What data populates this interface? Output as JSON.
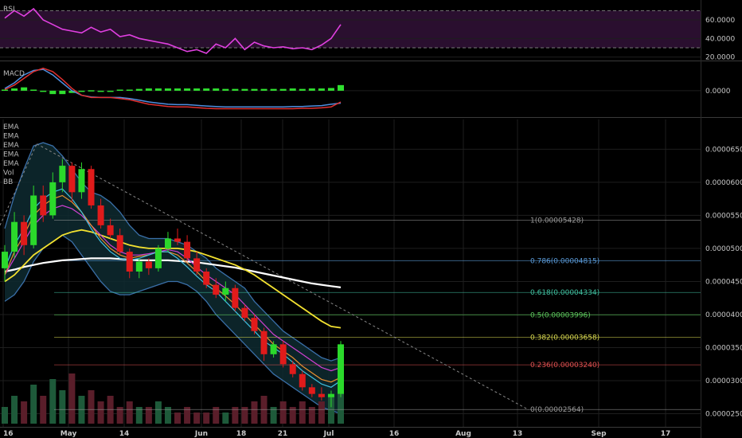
{
  "colors": {
    "background": "#000000",
    "grid": "#1e1e1e",
    "pane_divider": "#3a3a3a",
    "candle_up": "#2bd92b",
    "candle_down": "#e01b1b",
    "rsi_line": "#e040e0",
    "rsi_band": "#2a0f2f",
    "macd_line": "#4f8fe0",
    "signal_line": "#e03030",
    "hist_color": "#30e030",
    "bb_band": "#3a6fa8",
    "bb_fill": "#0e2a30",
    "volume_up": "#1e5a3a",
    "volume_down": "#5a1e2a",
    "trendline": "#888888"
  },
  "rsi": {
    "label": "RSI",
    "ticks": [
      "60.0000",
      "40.0000",
      "20.0000"
    ],
    "tick_values": [
      60,
      40,
      20
    ],
    "band": [
      30,
      70
    ]
  },
  "macd": {
    "label": "MACD",
    "ticks": [
      "0.0000"
    ]
  },
  "main": {
    "legend": [
      "EMA",
      "EMA",
      "EMA",
      "EMA",
      "EMA",
      "Vol",
      "BB"
    ],
    "price_ticks": [
      "0.00006500",
      "0.00006000",
      "0.00005500",
      "0.00005000",
      "0.00004500",
      "0.00004000",
      "0.00003500",
      "0.00003000",
      "0.00002500"
    ],
    "price_tick_values": [
      6.5e-05,
      6e-05,
      5.5e-05,
      5e-05,
      4.5e-05,
      4e-05,
      3.5e-05,
      3e-05,
      2.5e-05
    ],
    "price_range": [
      2.35e-05,
      6.95e-05
    ]
  },
  "x_axis": {
    "ticks": [
      "16",
      "May",
      "14",
      "Jun",
      "18",
      "21",
      "Jul",
      "16",
      "Aug",
      "13",
      "Sep",
      "17"
    ]
  },
  "fibonacci": [
    {
      "label": "1(0.00005428)",
      "level": 5.428e-05,
      "color": "#9a9a9a"
    },
    {
      "label": "0.786(0.00004815)",
      "level": 4.815e-05,
      "color": "#5a9ad8"
    },
    {
      "label": "0.618(0.00004334)",
      "level": 4.334e-05,
      "color": "#40c0a0"
    },
    {
      "label": "0.5(0.00003996)",
      "level": 3.996e-05,
      "color": "#5cc85c"
    },
    {
      "label": "0.382(0.00003658)",
      "level": 3.658e-05,
      "color": "#d8d850"
    },
    {
      "label": "0.236(0.00003240)",
      "level": 3.24e-05,
      "color": "#e05050"
    },
    {
      "label": "0(0.00002564)",
      "level": 2.564e-05,
      "color": "#9a9a9a"
    }
  ],
  "chart_data": {
    "type": "candlestick",
    "candles": [
      {
        "o": 4.7e-05,
        "h": 5.05e-05,
        "l": 4.5e-05,
        "c": 4.95e-05
      },
      {
        "o": 4.95e-05,
        "h": 5.55e-05,
        "l": 4.85e-05,
        "c": 5.4e-05
      },
      {
        "o": 5.4e-05,
        "h": 5.5e-05,
        "l": 4.9e-05,
        "c": 5.05e-05
      },
      {
        "o": 5.05e-05,
        "h": 5.95e-05,
        "l": 5e-05,
        "c": 5.8e-05
      },
      {
        "o": 5.8e-05,
        "h": 5.95e-05,
        "l": 5.4e-05,
        "c": 5.5e-05
      },
      {
        "o": 5.5e-05,
        "h": 6.15e-05,
        "l": 5.45e-05,
        "c": 6e-05
      },
      {
        "o": 6e-05,
        "h": 6.35e-05,
        "l": 5.85e-05,
        "c": 6.25e-05
      },
      {
        "o": 6.25e-05,
        "h": 6.3e-05,
        "l": 5.7e-05,
        "c": 5.85e-05
      },
      {
        "o": 5.85e-05,
        "h": 6.3e-05,
        "l": 5.75e-05,
        "c": 6.2e-05
      },
      {
        "o": 6.2e-05,
        "h": 6.25e-05,
        "l": 5.6e-05,
        "c": 5.65e-05
      },
      {
        "o": 5.65e-05,
        "h": 5.75e-05,
        "l": 5.3e-05,
        "c": 5.35e-05
      },
      {
        "o": 5.35e-05,
        "h": 5.45e-05,
        "l": 5.15e-05,
        "c": 5.2e-05
      },
      {
        "o": 5.2e-05,
        "h": 5.3e-05,
        "l": 4.9e-05,
        "c": 4.95e-05
      },
      {
        "o": 4.95e-05,
        "h": 5e-05,
        "l": 4.55e-05,
        "c": 4.65e-05
      },
      {
        "o": 4.65e-05,
        "h": 4.85e-05,
        "l": 4.55e-05,
        "c": 4.8e-05
      },
      {
        "o": 4.8e-05,
        "h": 4.85e-05,
        "l": 4.6e-05,
        "c": 4.7e-05
      },
      {
        "o": 4.7e-05,
        "h": 5.05e-05,
        "l": 4.65e-05,
        "c": 5e-05
      },
      {
        "o": 5e-05,
        "h": 5.25e-05,
        "l": 4.95e-05,
        "c": 5.15e-05
      },
      {
        "o": 5.15e-05,
        "h": 5.3e-05,
        "l": 5.05e-05,
        "c": 5.1e-05
      },
      {
        "o": 5.1e-05,
        "h": 5.2e-05,
        "l": 4.8e-05,
        "c": 4.85e-05
      },
      {
        "o": 4.85e-05,
        "h": 4.95e-05,
        "l": 4.6e-05,
        "c": 4.65e-05
      },
      {
        "o": 4.65e-05,
        "h": 4.7e-05,
        "l": 4.4e-05,
        "c": 4.45e-05
      },
      {
        "o": 4.45e-05,
        "h": 4.55e-05,
        "l": 4.25e-05,
        "c": 4.3e-05
      },
      {
        "o": 4.3e-05,
        "h": 4.5e-05,
        "l": 4.2e-05,
        "c": 4.4e-05
      },
      {
        "o": 4.4e-05,
        "h": 4.45e-05,
        "l": 4.05e-05,
        "c": 4.1e-05
      },
      {
        "o": 4.1e-05,
        "h": 4.15e-05,
        "l": 3.9e-05,
        "c": 3.95e-05
      },
      {
        "o": 3.95e-05,
        "h": 4e-05,
        "l": 3.7e-05,
        "c": 3.75e-05
      },
      {
        "o": 3.75e-05,
        "h": 3.8e-05,
        "l": 3.3e-05,
        "c": 3.4e-05
      },
      {
        "o": 3.4e-05,
        "h": 3.6e-05,
        "l": 3.35e-05,
        "c": 3.55e-05
      },
      {
        "o": 3.55e-05,
        "h": 3.6e-05,
        "l": 3.2e-05,
        "c": 3.25e-05
      },
      {
        "o": 3.25e-05,
        "h": 3.3e-05,
        "l": 3.05e-05,
        "c": 3.1e-05
      },
      {
        "o": 3.1e-05,
        "h": 3.15e-05,
        "l": 2.85e-05,
        "c": 2.9e-05
      },
      {
        "o": 2.9e-05,
        "h": 2.95e-05,
        "l": 2.75e-05,
        "c": 2.8e-05
      },
      {
        "o": 2.8e-05,
        "h": 2.9e-05,
        "l": 2.7e-05,
        "c": 2.75e-05
      },
      {
        "o": 2.75e-05,
        "h": 2.85e-05,
        "l": 2.6e-05,
        "c": 2.8e-05
      },
      {
        "o": 2.8e-05,
        "h": 3.6e-05,
        "l": 2.75e-05,
        "c": 3.55e-05
      }
    ],
    "rsi_values": [
      62,
      70,
      64,
      72,
      60,
      55,
      50,
      48,
      46,
      52,
      47,
      50,
      42,
      44,
      40,
      38,
      36,
      34,
      30,
      26,
      28,
      24,
      34,
      30,
      40,
      28,
      36,
      32,
      30,
      31,
      29,
      30,
      28,
      33,
      40,
      55
    ],
    "macd_values": [
      0.1,
      0.35,
      0.7,
      0.9,
      0.95,
      0.7,
      0.35,
      0.0,
      -0.2,
      -0.28,
      -0.3,
      -0.3,
      -0.3,
      -0.35,
      -0.42,
      -0.5,
      -0.55,
      -0.6,
      -0.62,
      -0.62,
      -0.65,
      -0.68,
      -0.7,
      -0.72,
      -0.72,
      -0.72,
      -0.72,
      -0.72,
      -0.72,
      -0.72,
      -0.7,
      -0.7,
      -0.68,
      -0.66,
      -0.6,
      -0.55
    ],
    "signal_values": [
      0.05,
      0.25,
      0.55,
      0.85,
      1.0,
      0.85,
      0.5,
      0.1,
      -0.2,
      -0.3,
      -0.3,
      -0.3,
      -0.35,
      -0.4,
      -0.5,
      -0.6,
      -0.65,
      -0.7,
      -0.72,
      -0.72,
      -0.75,
      -0.78,
      -0.8,
      -0.8,
      -0.8,
      -0.8,
      -0.8,
      -0.8,
      -0.8,
      -0.8,
      -0.8,
      -0.78,
      -0.78,
      -0.76,
      -0.72,
      -0.5
    ],
    "hist_values": [
      0.05,
      0.1,
      0.15,
      0.05,
      -0.05,
      -0.15,
      -0.15,
      -0.1,
      0,
      0.02,
      0,
      0,
      0.05,
      0.05,
      0.08,
      0.1,
      0.1,
      0.1,
      0.1,
      0.1,
      0.1,
      0.1,
      0.1,
      0.08,
      0.08,
      0.08,
      0.08,
      0.08,
      0.08,
      0.08,
      0.1,
      0.08,
      0.1,
      0.1,
      0.12,
      0.25
    ],
    "volume_values": [
      0.3,
      0.5,
      0.4,
      0.7,
      0.5,
      0.8,
      0.6,
      0.9,
      0.5,
      0.6,
      0.4,
      0.5,
      0.3,
      0.4,
      0.3,
      0.3,
      0.4,
      0.3,
      0.2,
      0.3,
      0.2,
      0.2,
      0.3,
      0.2,
      0.3,
      0.3,
      0.4,
      0.5,
      0.3,
      0.4,
      0.3,
      0.4,
      0.3,
      0.4,
      0.5,
      0.9
    ],
    "bb_upper": [
      5.3e-05,
      5.8e-05,
      6.2e-05,
      6.55e-05,
      6.6e-05,
      6.55e-05,
      6.4e-05,
      6.2e-05,
      6e-05,
      5.85e-05,
      5.8e-05,
      5.7e-05,
      5.55e-05,
      5.35e-05,
      5.2e-05,
      5.15e-05,
      5.15e-05,
      5.15e-05,
      5.1e-05,
      5.05e-05,
      4.95e-05,
      4.85e-05,
      4.7e-05,
      4.6e-05,
      4.5e-05,
      4.4e-05,
      4.2e-05,
      4.05e-05,
      3.9e-05,
      3.75e-05,
      3.65e-05,
      3.55e-05,
      3.45e-05,
      3.35e-05,
      3.3e-05,
      3.35e-05
    ],
    "bb_lower": [
      4.2e-05,
      4.3e-05,
      4.5e-05,
      4.8e-05,
      5e-05,
      5.1e-05,
      5.2e-05,
      5.1e-05,
      4.9e-05,
      4.7e-05,
      4.5e-05,
      4.35e-05,
      4.3e-05,
      4.3e-05,
      4.35e-05,
      4.4e-05,
      4.45e-05,
      4.5e-05,
      4.5e-05,
      4.45e-05,
      4.35e-05,
      4.2e-05,
      4e-05,
      3.85e-05,
      3.7e-05,
      3.55e-05,
      3.4e-05,
      3.25e-05,
      3.1e-05,
      3e-05,
      2.9e-05,
      2.8e-05,
      2.7e-05,
      2.6e-05,
      2.55e-05,
      2.5e-05
    ],
    "ema_slow": [
      4.65e-05,
      4.68e-05,
      4.72e-05,
      4.75e-05,
      4.78e-05,
      4.8e-05,
      4.82e-05,
      4.83e-05,
      4.84e-05,
      4.85e-05,
      4.85e-05,
      4.85e-05,
      4.84e-05,
      4.83e-05,
      4.82e-05,
      4.82e-05,
      4.82e-05,
      4.82e-05,
      4.81e-05,
      4.8e-05,
      4.79e-05,
      4.77e-05,
      4.75e-05,
      4.73e-05,
      4.71e-05,
      4.68e-05,
      4.65e-05,
      4.62e-05,
      4.59e-05,
      4.56e-05,
      4.53e-05,
      4.5e-05,
      4.47e-05,
      4.45e-05,
      4.43e-05,
      4.41e-05
    ],
    "ema_yellow": [
      4.5e-05,
      4.6e-05,
      4.75e-05,
      4.9e-05,
      5e-05,
      5.1e-05,
      5.2e-05,
      5.25e-05,
      5.28e-05,
      5.25e-05,
      5.2e-05,
      5.15e-05,
      5.1e-05,
      5.05e-05,
      5.02e-05,
      5e-05,
      5e-05,
      5e-05,
      5e-05,
      4.98e-05,
      4.95e-05,
      4.9e-05,
      4.85e-05,
      4.8e-05,
      4.75e-05,
      4.68e-05,
      4.6e-05,
      4.5e-05,
      4.4e-05,
      4.3e-05,
      4.2e-05,
      4.1e-05,
      4e-05,
      3.9e-05,
      3.82e-05,
      3.8e-05
    ],
    "ema_magenta": [
      4.6e-05,
      4.85e-05,
      5.1e-05,
      5.35e-05,
      5.5e-05,
      5.6e-05,
      5.65e-05,
      5.6e-05,
      5.5e-05,
      5.35e-05,
      5.2e-05,
      5.05e-05,
      4.95e-05,
      4.9e-05,
      4.9e-05,
      4.92e-05,
      4.95e-05,
      4.98e-05,
      4.95e-05,
      4.85e-05,
      4.72e-05,
      4.6e-05,
      4.5e-05,
      4.4e-05,
      4.3e-05,
      4.15e-05,
      4e-05,
      3.85e-05,
      3.7e-05,
      3.6e-05,
      3.5e-05,
      3.4e-05,
      3.3e-05,
      3.2e-05,
      3.15e-05,
      3.2e-05
    ],
    "ema_orange": [
      4.6e-05,
      4.95e-05,
      5.2e-05,
      5.5e-05,
      5.65e-05,
      5.75e-05,
      5.8e-05,
      5.7e-05,
      5.55e-05,
      5.35e-05,
      5.15e-05,
      5e-05,
      4.9e-05,
      4.85e-05,
      4.88e-05,
      4.9e-05,
      4.95e-05,
      4.95e-05,
      4.9e-05,
      4.78e-05,
      4.65e-05,
      4.5e-05,
      4.4e-05,
      4.28e-05,
      4.15e-05,
      4e-05,
      3.85e-05,
      3.7e-05,
      3.55e-05,
      3.45e-05,
      3.35e-05,
      3.22e-05,
      3.12e-05,
      3.02e-05,
      2.98e-05,
      3.05e-05
    ],
    "ema_blue": [
      4.7e-05,
      5.05e-05,
      5.3e-05,
      5.6e-05,
      5.75e-05,
      5.85e-05,
      5.9e-05,
      5.75e-05,
      5.55e-05,
      5.3e-05,
      5.1e-05,
      4.95e-05,
      4.85e-05,
      4.82e-05,
      4.85e-05,
      4.9e-05,
      4.95e-05,
      4.95e-05,
      4.85e-05,
      4.72e-05,
      4.58e-05,
      4.45e-05,
      4.35e-05,
      4.2e-05,
      4.05e-05,
      3.9e-05,
      3.75e-05,
      3.6e-05,
      3.5e-05,
      3.4e-05,
      3.28e-05,
      3.15e-05,
      3.05e-05,
      2.95e-05,
      2.9e-05,
      3e-05
    ]
  }
}
